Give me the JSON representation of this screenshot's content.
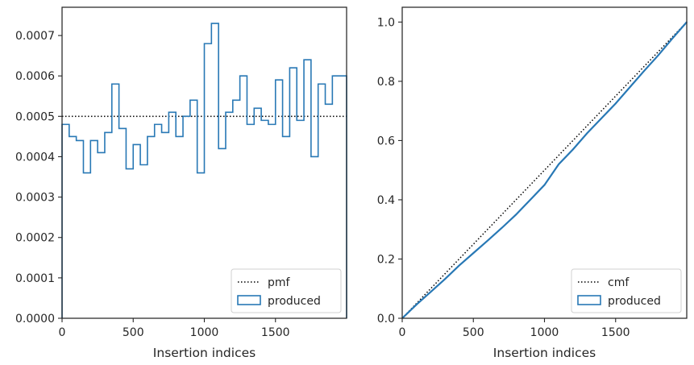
{
  "chart_data": [
    {
      "type": "step",
      "xlabel": "Insertion indices",
      "ylabel": "",
      "xlim": [
        0,
        2000
      ],
      "ylim": [
        0,
        0.00077
      ],
      "xticks": [
        0,
        500,
        1000,
        1500
      ],
      "xtick_labels": [
        "0",
        "500",
        "1000",
        "1500"
      ],
      "yticks": [
        0,
        0.0001,
        0.0002,
        0.0003,
        0.0004,
        0.0005,
        0.0006,
        0.0007
      ],
      "ytick_labels": [
        "0.0000",
        "0.0001",
        "0.0002",
        "0.0003",
        "0.0004",
        "0.0005",
        "0.0006",
        "0.0007"
      ],
      "grid": false,
      "legend_position": "lower-right",
      "legend": [
        {
          "label": "pmf",
          "style": "dotted-line",
          "color": "#000000"
        },
        {
          "label": "produced",
          "style": "patch",
          "color": "#2878b5"
        }
      ],
      "reference_line": {
        "name": "pmf",
        "y": 0.0005
      },
      "series": [
        {
          "name": "produced",
          "bin_width": 50,
          "bin_starts": [
            0,
            50,
            100,
            150,
            200,
            250,
            300,
            350,
            400,
            450,
            500,
            550,
            600,
            650,
            700,
            750,
            800,
            850,
            900,
            950,
            1000,
            1050,
            1100,
            1150,
            1200,
            1250,
            1300,
            1350,
            1400,
            1450,
            1500,
            1550,
            1600,
            1650,
            1700,
            1750,
            1800,
            1850,
            1900,
            1950
          ],
          "values": [
            0.00048,
            0.00045,
            0.00044,
            0.00036,
            0.00044,
            0.00041,
            0.00046,
            0.00058,
            0.00047,
            0.00037,
            0.00043,
            0.00038,
            0.00045,
            0.00048,
            0.00046,
            0.00051,
            0.00045,
            0.0005,
            0.00054,
            0.00036,
            0.00068,
            0.00073,
            0.00042,
            0.00051,
            0.00054,
            0.0006,
            0.00048,
            0.00052,
            0.00049,
            0.00048,
            0.00059,
            0.00045,
            0.00062,
            0.00049,
            0.00064,
            0.0004,
            0.00058,
            0.00053,
            0.0006,
            0.0006
          ]
        }
      ]
    },
    {
      "type": "line",
      "xlabel": "Insertion indices",
      "ylabel": "",
      "xlim": [
        0,
        2000
      ],
      "ylim": [
        0,
        1.05
      ],
      "xticks": [
        0,
        500,
        1000,
        1500
      ],
      "xtick_labels": [
        "0",
        "500",
        "1000",
        "1500"
      ],
      "yticks": [
        0,
        0.2,
        0.4,
        0.6,
        0.8,
        1.0
      ],
      "ytick_labels": [
        "0.0",
        "0.2",
        "0.4",
        "0.6",
        "0.8",
        "1.0"
      ],
      "grid": false,
      "legend_position": "lower-right",
      "legend": [
        {
          "label": "cmf",
          "style": "dotted-line",
          "color": "#000000"
        },
        {
          "label": "produced",
          "style": "patch",
          "color": "#2878b5"
        }
      ],
      "reference_line": {
        "name": "cmf",
        "x": [
          0,
          2000
        ],
        "y": [
          0,
          1.0
        ]
      },
      "series": [
        {
          "name": "produced",
          "x": [
            0,
            100,
            200,
            300,
            400,
            500,
            600,
            700,
            800,
            900,
            1000,
            1100,
            1200,
            1300,
            1400,
            1500,
            1600,
            1700,
            1800,
            1900,
            2000
          ],
          "y": [
            0,
            0.046,
            0.089,
            0.132,
            0.178,
            0.22,
            0.262,
            0.305,
            0.35,
            0.4,
            0.45,
            0.52,
            0.57,
            0.625,
            0.675,
            0.725,
            0.78,
            0.835,
            0.888,
            0.945,
            1.0
          ]
        }
      ]
    }
  ]
}
